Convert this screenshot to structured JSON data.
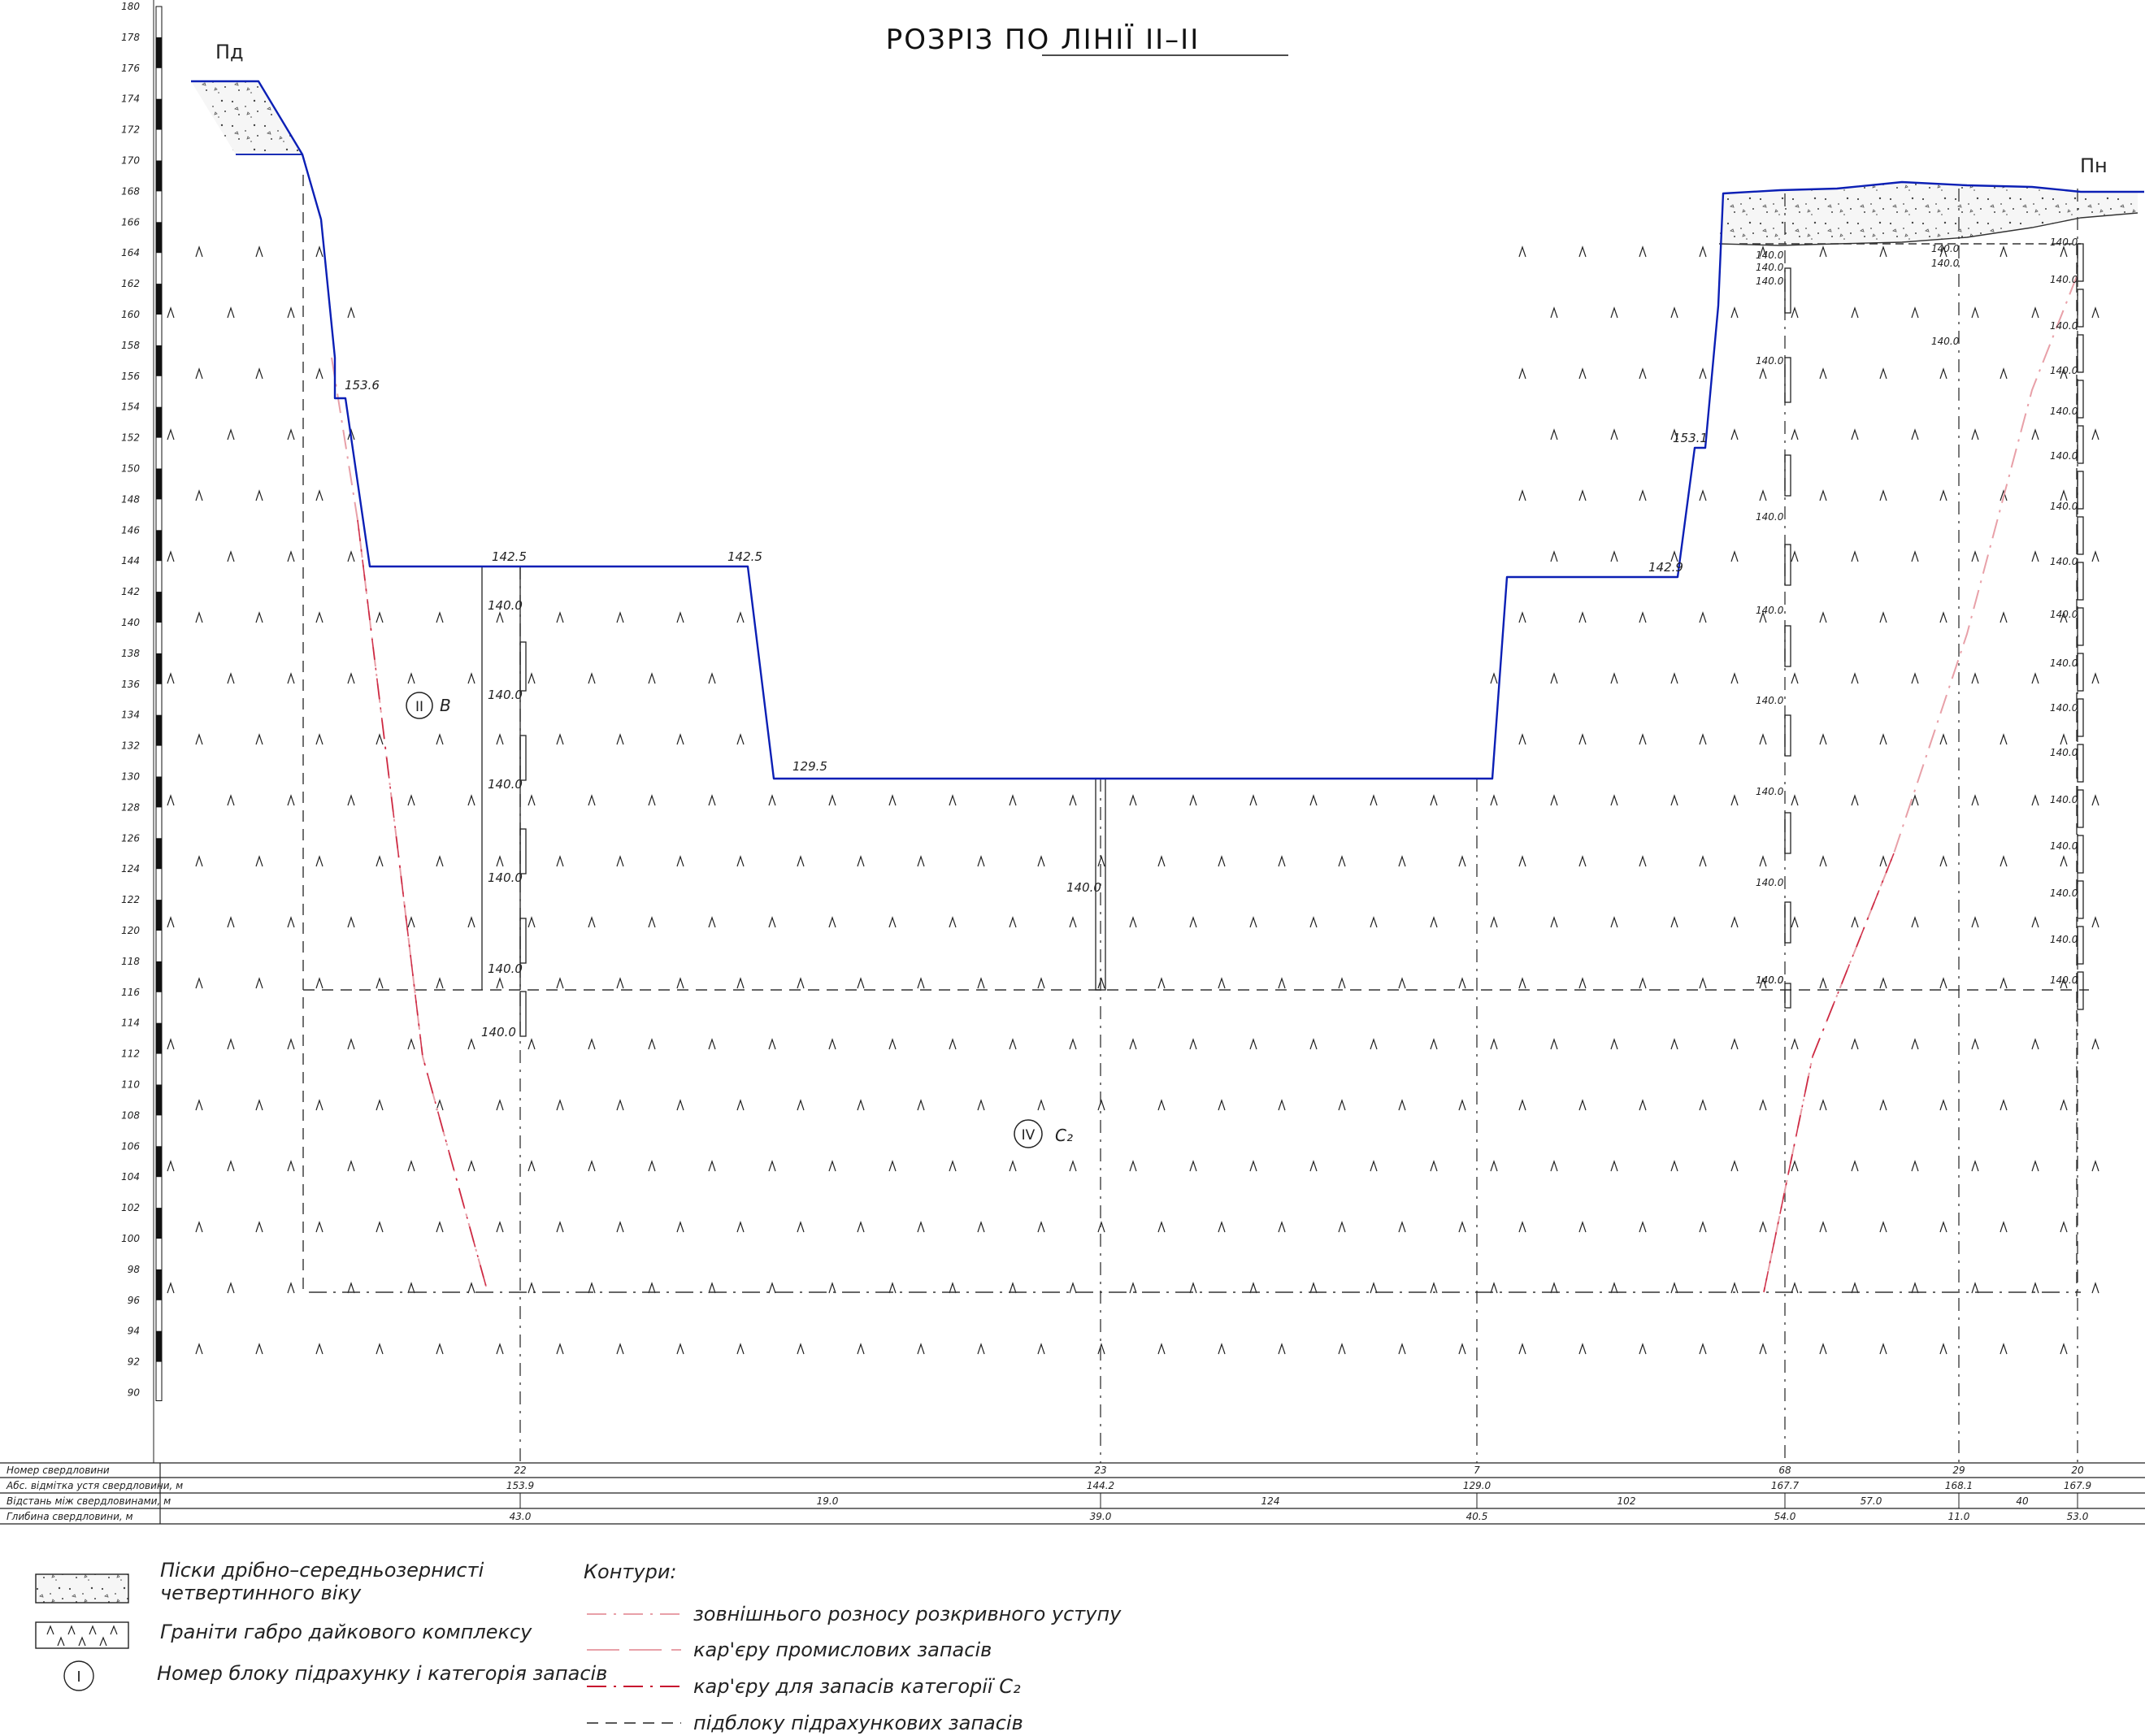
{
  "title": "РОЗРІЗ ПО ЛІНІЇ ІІ–ІІ",
  "directions": {
    "left": "Пд",
    "right": "Пн"
  },
  "colors": {
    "pit_contour": "#0b1fb5",
    "contour_red": "#c8102e",
    "contour_pink": "#e8a0a8",
    "lines": "#222222",
    "sand_fill": "#f3f3f3"
  },
  "scale": {
    "min": 90,
    "max": 180,
    "step": 2,
    "labels": [
      "180",
      "178",
      "176",
      "174",
      "172",
      "170",
      "168",
      "166",
      "164",
      "162",
      "160",
      "158",
      "156",
      "154",
      "152",
      "150",
      "148",
      "146",
      "144",
      "142",
      "140",
      "138",
      "136",
      "134",
      "132",
      "130",
      "128",
      "126",
      "124",
      "122",
      "120",
      "118",
      "116",
      "114",
      "112",
      "110",
      "108",
      "106",
      "104",
      "102",
      "100",
      "98",
      "96",
      "94",
      "92",
      "90"
    ]
  },
  "elevation_labels": [
    "153.6",
    "142.5",
    "142.5",
    "129.5",
    "142.9",
    "153.1"
  ],
  "sample_labels": {
    "borehole_22": [
      "140.0",
      "140.0",
      "140.0",
      "140.0",
      "140.0",
      "140.0"
    ],
    "borehole_23": [
      "140.0"
    ],
    "borehole_68": [
      "140.0",
      "140.0",
      "140.0",
      "140.0",
      "140.0",
      "140.0",
      "140.0",
      "140.0",
      "140.0",
      "140.0",
      "140.0"
    ],
    "borehole_29": [
      "140.0",
      "140.0",
      "140.0"
    ],
    "borehole_20": [
      "140.0",
      "140.0",
      "140.0",
      "140.0",
      "140.0",
      "140.0",
      "140.0",
      "140.0",
      "140.0",
      "140.0",
      "140.0",
      "140.0",
      "140.0",
      "140.0",
      "140.0",
      "140.0",
      "140.0"
    ]
  },
  "blocks": [
    {
      "number": "II",
      "category": "B"
    },
    {
      "number": "IV",
      "category": "C₂"
    }
  ],
  "table": {
    "row_labels": [
      "Номер свердловини",
      "Абс. відмітка устя свердловини, м",
      "Відстань між свердловинами, м",
      "Глибина свердловини, м"
    ],
    "boreholes": [
      {
        "number": "22",
        "elevation": "153.9",
        "depth": "43.0"
      },
      {
        "number": "23",
        "elevation": "144.2",
        "depth": "39.0"
      },
      {
        "number": "7",
        "elevation": "129.0",
        "depth": "40.5"
      },
      {
        "number": "68",
        "elevation": "167.7",
        "depth": "54.0"
      },
      {
        "number": "29",
        "elevation": "168.1",
        "depth": "11.0"
      },
      {
        "number": "20",
        "elevation": "167.9",
        "depth": "53.0"
      }
    ],
    "distances": [
      "19.0",
      "124",
      "102",
      "57.0",
      "40"
    ]
  },
  "legend": {
    "sand": {
      "line1": "Піски дрібно–середньозернисті",
      "line2": "четвертинного віку"
    },
    "granite": {
      "label": "Граніти габро дайкового комплексу"
    },
    "block": {
      "symbol": "I",
      "label": "Номер блоку підрахунку і категорія запасів"
    },
    "contours_title": "Контури:",
    "contours": [
      {
        "label": "зовнішнього розносу розкривного уступу",
        "style": "pink-dashdot"
      },
      {
        "label": "кар'єру промислових запасів",
        "style": "pink-dash"
      },
      {
        "label": "кар'єру для запасів категорії C₂",
        "style": "red-dashdot"
      },
      {
        "label": "підблоку підрахункових запасів",
        "style": "black-dash"
      }
    ]
  }
}
